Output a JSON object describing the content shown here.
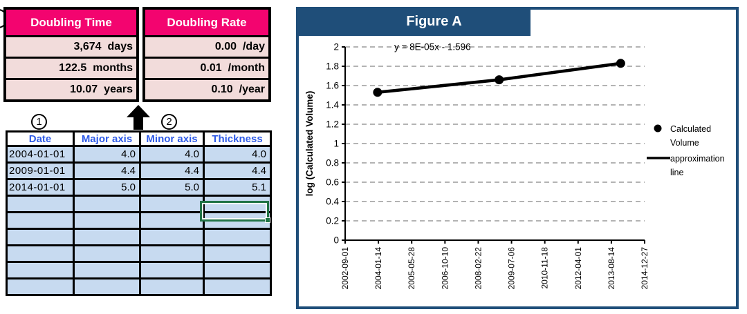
{
  "colors": {
    "pink_header": "#F3046F",
    "light_pink": "#F2DCDB",
    "light_blue": "#C7DAF0",
    "header_blue_text": "#2F5BE7",
    "navy": "#1F4E79",
    "selection_green": "#217346",
    "gridline_gray": "#9a9a9a",
    "series_black": "#000000"
  },
  "left_panel": {
    "doubling_tables": {
      "time": {
        "header": "Doubling Time",
        "rows": [
          {
            "value": "3,674",
            "unit": "days"
          },
          {
            "value": "122.5",
            "unit": "months"
          },
          {
            "value": "10.07",
            "unit": "years"
          }
        ]
      },
      "rate": {
        "header": "Doubling Rate",
        "rows": [
          {
            "value": "0.00",
            "unit": "/day"
          },
          {
            "value": "0.01",
            "unit": "/month"
          },
          {
            "value": "0.10",
            "unit": "/year"
          }
        ]
      }
    },
    "annotations": {
      "label_1": "1",
      "label_2": "2"
    },
    "data_table": {
      "headers": [
        "Date",
        "Major axis",
        "Minor axis",
        "Thickness"
      ],
      "rows": [
        [
          "2004-01-01",
          "4.0",
          "4.0",
          "4.0"
        ],
        [
          "2009-01-01",
          "4.4",
          "4.4",
          "4.4"
        ],
        [
          "2014-01-01",
          "5.0",
          "5.0",
          "5.1"
        ]
      ],
      "empty_row_count": 6,
      "selected_cell": {
        "row_index": 4,
        "column": "Thickness"
      }
    }
  },
  "figure": {
    "title": "Figure A"
  },
  "chart_data": {
    "type": "line",
    "title": "Figure A",
    "equation_label": "y = 8E-05x - 1.596",
    "ylabel": "log (Calculated Volume)",
    "ylim": [
      0,
      2
    ],
    "ytick_step": 0.2,
    "ytick_labels": [
      "0",
      "0.2",
      "0.4",
      "0.6",
      "0.8",
      "1",
      "1.2",
      "1.4",
      "1.6",
      "1.8",
      "2"
    ],
    "x_range": [
      "2002-09-01",
      "2014-12-27"
    ],
    "xtick_labels": [
      "2002-09-01",
      "2004-01-14",
      "2005-05-28",
      "2006-10-10",
      "2008-02-22",
      "2009-07-06",
      "2010-11-18",
      "2012-04-01",
      "2013-08-14",
      "2014-12-27"
    ],
    "grid": "dashed-horizontal",
    "legend_position": "right",
    "series": [
      {
        "name": "Calculated Volume",
        "legend_lines": [
          "Calculated",
          "Volume"
        ],
        "marker": "dot",
        "x": [
          "2004-01-01",
          "2009-01-01",
          "2014-01-01"
        ],
        "y": [
          1.53,
          1.66,
          1.83
        ]
      },
      {
        "name": "approximation line",
        "legend_lines": [
          "approximation",
          "line"
        ],
        "marker": "line",
        "x": [
          "2004-01-01",
          "2014-01-01"
        ],
        "y": [
          1.53,
          1.83
        ]
      }
    ]
  }
}
